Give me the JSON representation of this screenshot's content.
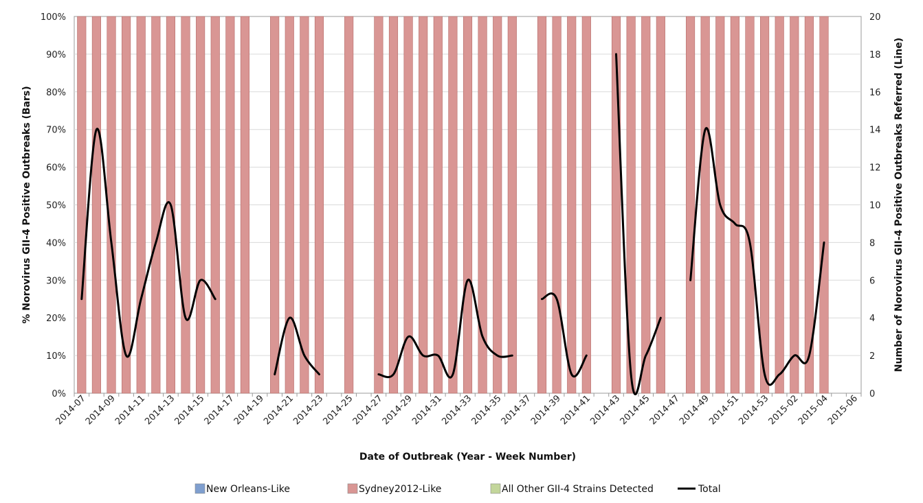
{
  "chart_data": {
    "type": "bar",
    "xlabel": "Date of Outbreak (Year - Week Number)",
    "ylabel_left": "% Norovirus GII-4 Positive Outbreaks (Bars)",
    "ylabel_right": "Number of Norovirus GII-4 Positive Outbreaks Referred (Line)",
    "ylim_left": [
      0,
      100
    ],
    "ylim_right": [
      0,
      20
    ],
    "left_ticks": [
      "0%",
      "10%",
      "20%",
      "30%",
      "40%",
      "50%",
      "60%",
      "70%",
      "80%",
      "90%",
      "100%"
    ],
    "right_ticks": [
      "0",
      "2",
      "4",
      "6",
      "8",
      "10",
      "12",
      "14",
      "16",
      "18",
      "20"
    ],
    "grid": "horizontal",
    "legend_position": "bottom",
    "categories": [
      "2014-07",
      "2014-08",
      "2014-09",
      "2014-10",
      "2014-11",
      "2014-12",
      "2014-13",
      "2014-14",
      "2014-15",
      "2014-16",
      "2014-17",
      "2014-18",
      "2014-19",
      "2014-20",
      "2014-21",
      "2014-22",
      "2014-23",
      "2014-24",
      "2014-25",
      "2014-26",
      "2014-27",
      "2014-28",
      "2014-29",
      "2014-30",
      "2014-31",
      "2014-32",
      "2014-33",
      "2014-34",
      "2014-35",
      "2014-36",
      "2014-37",
      "2014-38",
      "2014-39",
      "2014-40",
      "2014-41",
      "2014-42",
      "2014-43",
      "2014-44",
      "2014-45",
      "2014-46",
      "2014-47",
      "2014-48",
      "2014-49",
      "2014-50",
      "2014-51",
      "2014-52",
      "2014-53",
      "2015-01",
      "2015-02",
      "2015-03",
      "2015-04",
      "2015-05",
      "2015-06"
    ],
    "tick_labels": [
      "2014-07",
      "2014-09",
      "2014-11",
      "2014-13",
      "2014-15",
      "2014-17",
      "2014-19",
      "2014-21",
      "2014-23",
      "2014-25",
      "2014-27",
      "2014-29",
      "2014-31",
      "2014-33",
      "2014-35",
      "2014-37",
      "2014-39",
      "2014-41",
      "2014-43",
      "2014-45",
      "2014-47",
      "2014-49",
      "2014-51",
      "2014-53",
      "2015-02",
      "2015-04",
      "2015-06"
    ],
    "series": [
      {
        "name": "New Orleans-Like",
        "type": "bar",
        "color": "#7f9fcf",
        "values": [
          0,
          0,
          0,
          0,
          0,
          0,
          0,
          0,
          0,
          0,
          0,
          0,
          null,
          0,
          0,
          0,
          0,
          null,
          null,
          null,
          0,
          0,
          0,
          0,
          0,
          0,
          0,
          0,
          0,
          0,
          null,
          0,
          0,
          0,
          0,
          null,
          0,
          0,
          0,
          0,
          null,
          0,
          0,
          0,
          0,
          0,
          0,
          0,
          0,
          0,
          0,
          null,
          null
        ]
      },
      {
        "name": "Sydney2012-Like",
        "type": "bar",
        "color": "#d99694",
        "values": [
          100,
          100,
          100,
          100,
          100,
          100,
          100,
          100,
          100,
          100,
          100,
          100,
          null,
          100,
          100,
          100,
          100,
          null,
          100,
          null,
          100,
          100,
          100,
          100,
          100,
          100,
          100,
          100,
          100,
          100,
          null,
          100,
          100,
          100,
          100,
          null,
          100,
          100,
          100,
          100,
          null,
          100,
          100,
          100,
          100,
          100,
          100,
          100,
          100,
          100,
          100,
          null,
          null
        ]
      },
      {
        "name": "All Other GII-4 Strains Detected",
        "type": "bar",
        "color": "#c3d69b",
        "values": [
          0,
          0,
          0,
          0,
          0,
          0,
          0,
          0,
          0,
          0,
          0,
          0,
          null,
          0,
          0,
          0,
          0,
          null,
          null,
          null,
          0,
          0,
          0,
          0,
          0,
          0,
          0,
          0,
          0,
          0,
          null,
          0,
          0,
          0,
          0,
          null,
          0,
          0,
          0,
          0,
          null,
          0,
          0,
          0,
          0,
          0,
          0,
          0,
          0,
          0,
          0,
          null,
          null
        ]
      },
      {
        "name": "Total",
        "type": "line",
        "axis": "right",
        "color": "#000000",
        "values": [
          5,
          14,
          8,
          2,
          5,
          8,
          10,
          4,
          6,
          5,
          null,
          null,
          null,
          1,
          4,
          2,
          1,
          null,
          null,
          null,
          1,
          1,
          3,
          2,
          2,
          1,
          6,
          3,
          2,
          2,
          null,
          5,
          5,
          1,
          2,
          null,
          18,
          1,
          2,
          4,
          null,
          6,
          14,
          10,
          9,
          8,
          1,
          1,
          2,
          2,
          8,
          null,
          null
        ]
      }
    ]
  },
  "legend": {
    "items": [
      {
        "label": "New Orleans-Like",
        "color": "#7f9fcf",
        "kind": "swatch"
      },
      {
        "label": "Sydney2012-Like",
        "color": "#d99694",
        "kind": "swatch"
      },
      {
        "label": "All Other GII-4 Strains Detected",
        "color": "#c3d69b",
        "kind": "swatch"
      },
      {
        "label": "Total",
        "color": "#000000",
        "kind": "line"
      }
    ]
  },
  "colors": {
    "grid": "#d9d9d9",
    "bar_stroke": "#b46b68",
    "axis": "#999999"
  }
}
